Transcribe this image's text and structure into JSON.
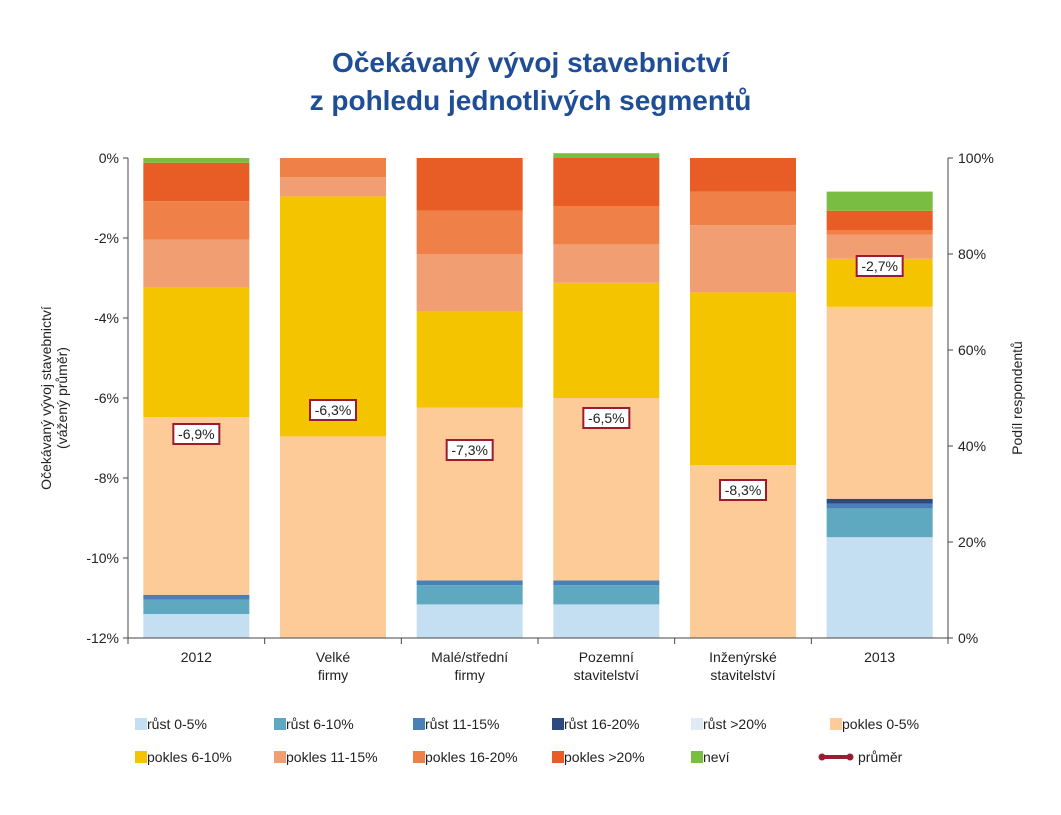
{
  "title": {
    "line1": "Očekávaný vývoj stavebnictví",
    "line2": "z pohledu jednotlivých segmentů"
  },
  "chart_data": {
    "type": "bar",
    "stacked": true,
    "categories": [
      [
        "2012"
      ],
      [
        "Velké",
        "firmy"
      ],
      [
        "Malé/střední",
        "firmy"
      ],
      [
        "Pozemní",
        "stavitelství"
      ],
      [
        "Inženýrské",
        "stavitelství"
      ],
      [
        "2013"
      ]
    ],
    "series": [
      {
        "name": "růst 0-5%",
        "color": "#c5dff2",
        "values": [
          5,
          0,
          7,
          7,
          0,
          21
        ]
      },
      {
        "name": "růst 6-10%",
        "color": "#5ea9bf",
        "values": [
          3,
          0,
          4,
          4,
          0,
          6
        ]
      },
      {
        "name": "růst 11-15%",
        "color": "#4a7fb8",
        "values": [
          1,
          0,
          1,
          1,
          0,
          1
        ]
      },
      {
        "name": "růst 16-20%",
        "color": "#2b4a80",
        "values": [
          0,
          0,
          0,
          0,
          0,
          1
        ]
      },
      {
        "name": "růst >20%",
        "color": "#dfeaf5",
        "values": [
          0,
          0,
          0,
          0,
          0,
          0
        ]
      },
      {
        "name": "pokles 0-5%",
        "color": "#fccb98",
        "values": [
          37,
          42,
          36,
          38,
          36,
          40
        ]
      },
      {
        "name": "pokles 6-10%",
        "color": "#f5c400",
        "values": [
          27,
          50,
          20,
          24,
          36,
          10
        ]
      },
      {
        "name": "pokles 11-15%",
        "color": "#f29e73",
        "values": [
          10,
          4,
          12,
          8,
          14,
          5
        ]
      },
      {
        "name": "pokles 16-20%",
        "color": "#ee8048",
        "values": [
          8,
          4,
          9,
          8,
          7,
          1
        ]
      },
      {
        "name": "pokles >20%",
        "color": "#e85c25",
        "values": [
          8,
          0,
          11,
          10,
          7,
          4
        ]
      },
      {
        "name": "neví",
        "color": "#79bd42",
        "values": [
          1,
          0,
          0,
          1,
          0,
          4
        ]
      }
    ],
    "average": {
      "name": "průměr",
      "color": "#9b1b30",
      "values": [
        -6.9,
        -6.3,
        -7.3,
        -6.5,
        -8.3,
        -2.7
      ],
      "labels": [
        "-6,9%",
        "-6,3%",
        "-7,3%",
        "-6,5%",
        "-8,3%",
        "-2,7%"
      ]
    },
    "ylabel_left": [
      "Očekávaný vývoj stavebnictví",
      "(vážený průměr)"
    ],
    "ylabel_right": "Podíl respondentů",
    "ylim_left": [
      -12,
      0
    ],
    "ylim_right": [
      0,
      100
    ],
    "yticks_left": [
      "0%",
      "-2%",
      "-4%",
      "-6%",
      "-8%",
      "-10%",
      "-12%"
    ],
    "yticks_right": [
      "100%",
      "80%",
      "60%",
      "40%",
      "20%",
      "0%"
    ],
    "legend_position": "bottom"
  }
}
